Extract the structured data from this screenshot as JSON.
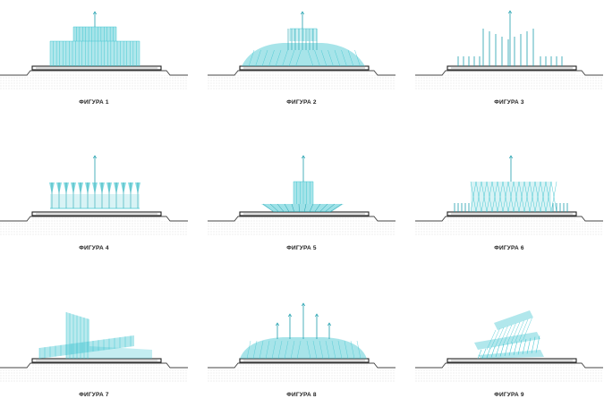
{
  "accent_color": "#3cc4cf",
  "accent_dark": "#1f9fae",
  "ground_color": "#444444",
  "figures": [
    {
      "caption": "ФИГУРА 1",
      "pattern": "tiered-curtain"
    },
    {
      "caption": "ФИГУРА 2",
      "pattern": "dome-with-center-jets"
    },
    {
      "caption": "ФИГУРА 3",
      "pattern": "stepped-jets"
    },
    {
      "caption": "ФИГУРА 4",
      "pattern": "fan-ring"
    },
    {
      "caption": "ФИГУРА 5",
      "pattern": "crown-bowl"
    },
    {
      "caption": "ФИГУРА 6",
      "pattern": "lattice-ring"
    },
    {
      "caption": "ФИГУРА 7",
      "pattern": "crossed-sheets"
    },
    {
      "caption": "ФИГУРА 8",
      "pattern": "dome-with-tall-jets"
    },
    {
      "caption": "ФИГУРА 9",
      "pattern": "spiral"
    }
  ]
}
